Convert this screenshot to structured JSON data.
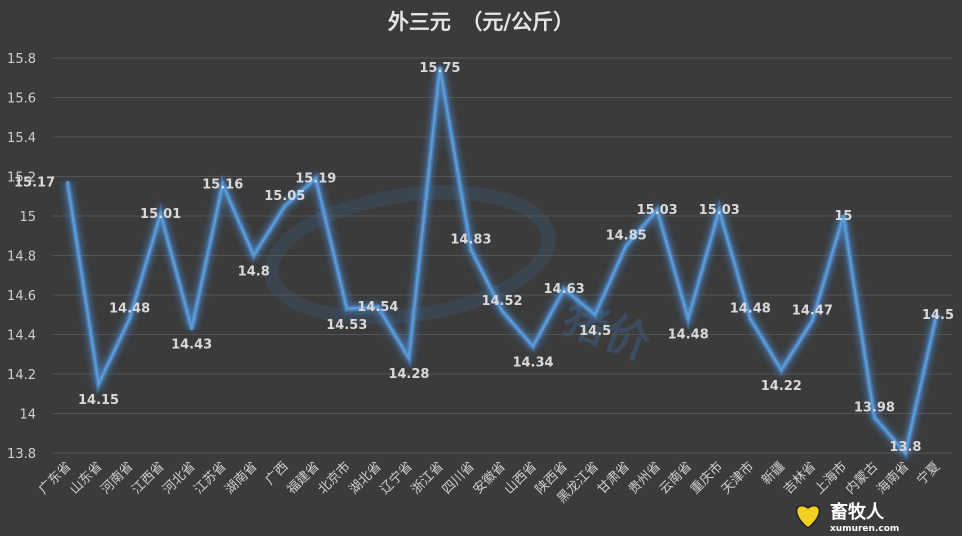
{
  "chart_data": {
    "type": "line",
    "title": "外三元　（元/公斤）",
    "categories": [
      "广东省",
      "山东省",
      "河南省",
      "江西省",
      "河北省",
      "江苏省",
      "湖南省",
      "广西",
      "福建省",
      "北京市",
      "湖北省",
      "辽宁省",
      "浙江省",
      "四川省",
      "安徽省",
      "山西省",
      "陕西省",
      "黑龙江省",
      "甘肃省",
      "贵州省",
      "云南省",
      "重庆市",
      "天津市",
      "新疆",
      "吉林省",
      "上海市",
      "内蒙古",
      "海南省",
      "宁夏"
    ],
    "series": [
      {
        "values": [
          15.17,
          14.15,
          14.48,
          15.01,
          14.43,
          15.16,
          14.8,
          15.05,
          15.19,
          14.53,
          14.54,
          14.28,
          15.75,
          14.83,
          14.52,
          14.34,
          14.63,
          14.5,
          14.85,
          15.03,
          14.48,
          15.03,
          14.48,
          14.22,
          14.47,
          15,
          13.98,
          13.8,
          14.5
        ]
      }
    ],
    "data_labels": [
      "15.17",
      "14.15",
      "14.48",
      "15.01",
      "14.43",
      "15.16",
      "14.8",
      "15.05",
      "15.19",
      "14.53",
      "14.54",
      "14.28",
      "15.75",
      "14.83",
      "14.52",
      "14.34",
      "14.63",
      "14.5",
      "14.85",
      "15.03",
      "14.48",
      "15.03",
      "14.48",
      "14.22",
      "14.47",
      "15",
      "13.98",
      "13.8",
      "14.5"
    ],
    "ylim": [
      13.8,
      15.8
    ],
    "yticks": [
      "13.8",
      "14",
      "14.2",
      "14.4",
      "14.6",
      "14.8",
      "15",
      "15.2",
      "15.4",
      "15.6",
      "15.8"
    ],
    "grid": true,
    "colors": {
      "line": "#5b9bd5",
      "glow": "#4f8fd8",
      "background": "#3b3b3b",
      "grid": "#555555",
      "text": "#d0d0d0"
    }
  },
  "watermark": {
    "text": "猪价"
  },
  "logo": {
    "name": "畜牧人",
    "url": "xumuren.com",
    "icon": "heart-logo-icon"
  }
}
